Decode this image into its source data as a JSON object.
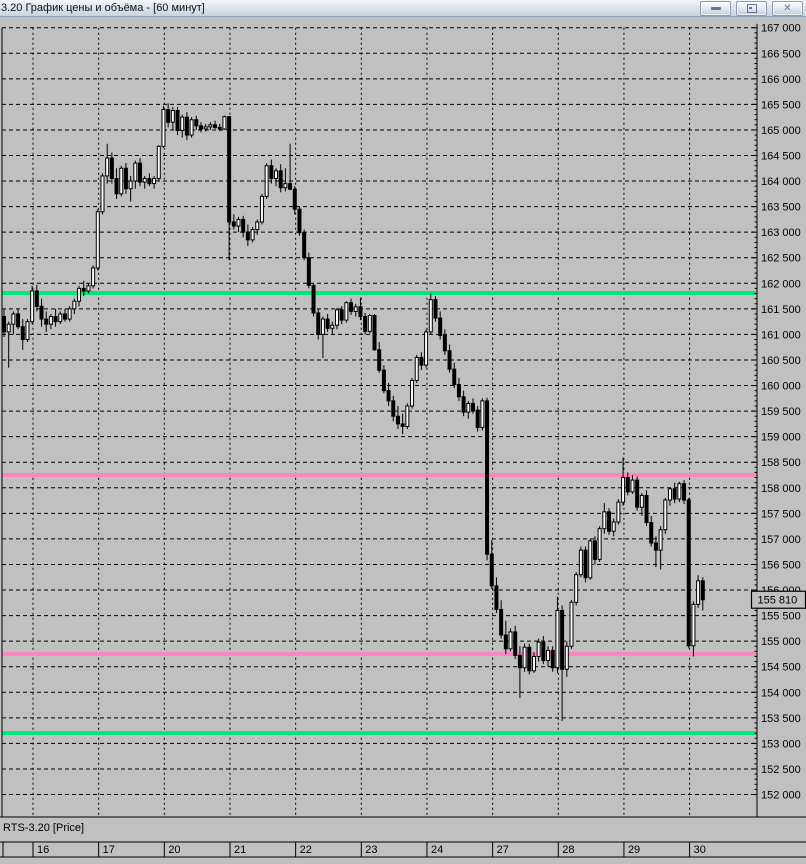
{
  "window": {
    "title": "3.20 График цены и объёма - [60 минут]",
    "buttons": [
      {
        "name": "minimize"
      },
      {
        "name": "restore"
      },
      {
        "name": "close"
      }
    ]
  },
  "footer": {
    "instrument_label": "RTS-3.20 [Price]"
  },
  "chart_data": {
    "type": "candlestick",
    "title": "График цены и объёма",
    "timeframe": "60 минут",
    "instrument": "RTS-3.20",
    "background": "#c0c0c0",
    "grid": true,
    "last_price": 155810,
    "y_axis": {
      "side": "right",
      "min": 152000,
      "max": 167000,
      "tick_step": 500,
      "minor_tick_step": 100,
      "label_format": "space_thousands"
    },
    "x_axis": {
      "day_labels": [
        "16",
        "17",
        "20",
        "21",
        "22",
        "23",
        "24",
        "27",
        "28",
        "29",
        "30"
      ],
      "candles_per_day": 14,
      "lead_in_candles": 6
    },
    "levels": [
      {
        "name": "resistance-upper",
        "color": "#00e87c",
        "price": 161810
      },
      {
        "name": "resistance-mid",
        "color": "#ff85c2",
        "price": 158250
      },
      {
        "name": "support-mid",
        "color": "#ff85c2",
        "price": 154750
      },
      {
        "name": "support-lower",
        "color": "#00e87c",
        "price": 153200
      }
    ],
    "candles": [
      [
        161350,
        161500,
        160950,
        161050
      ],
      [
        161050,
        161250,
        160350,
        161200
      ],
      [
        161200,
        161450,
        161000,
        161400
      ],
      [
        161400,
        161500,
        161100,
        161150
      ],
      [
        161150,
        161300,
        160700,
        160900
      ],
      [
        160900,
        161300,
        160850,
        161250
      ],
      [
        161250,
        161950,
        161200,
        161850
      ],
      [
        161850,
        161970,
        161450,
        161550
      ],
      [
        161550,
        161700,
        161150,
        161300
      ],
      [
        161300,
        161450,
        161050,
        161200
      ],
      [
        161200,
        161400,
        161100,
        161350
      ],
      [
        161350,
        161500,
        161150,
        161250
      ],
      [
        161250,
        161450,
        161200,
        161400
      ],
      [
        161400,
        161500,
        161250,
        161300
      ],
      [
        161300,
        161550,
        161250,
        161500
      ],
      [
        161500,
        161700,
        161400,
        161650
      ],
      [
        161650,
        161950,
        161550,
        161900
      ],
      [
        161900,
        162050,
        161750,
        161850
      ],
      [
        161850,
        162000,
        161800,
        161950
      ],
      [
        161950,
        162350,
        161900,
        162300
      ],
      [
        162300,
        163450,
        162250,
        163400
      ],
      [
        163400,
        164150,
        163350,
        164100
      ],
      [
        164100,
        164730,
        163950,
        164450
      ],
      [
        164450,
        164560,
        163950,
        164050
      ],
      [
        164050,
        164250,
        163650,
        163750
      ],
      [
        163750,
        164300,
        163700,
        164250
      ],
      [
        164250,
        164350,
        163750,
        163850
      ],
      [
        163850,
        164100,
        163600,
        164000
      ],
      [
        164000,
        164400,
        163850,
        164350
      ],
      [
        164350,
        164450,
        163900,
        163980
      ],
      [
        163980,
        164100,
        163850,
        164050
      ],
      [
        164050,
        164150,
        163900,
        163950
      ],
      [
        163950,
        164100,
        163850,
        164050
      ],
      [
        164050,
        164700,
        164000,
        164680
      ],
      [
        164680,
        165470,
        164650,
        165400
      ],
      [
        165400,
        165520,
        165050,
        165150
      ],
      [
        165150,
        165450,
        165000,
        165380
      ],
      [
        165380,
        165450,
        164900,
        164990
      ],
      [
        164990,
        165300,
        164850,
        165250
      ],
      [
        165250,
        165350,
        164800,
        164900
      ],
      [
        164900,
        165250,
        164850,
        165200
      ],
      [
        165200,
        165280,
        165000,
        165080
      ],
      [
        165080,
        165150,
        164950,
        165020
      ],
      [
        165020,
        165120,
        164970,
        165060
      ],
      [
        165060,
        165150,
        165000,
        165100
      ],
      [
        165100,
        165180,
        165020,
        165050
      ],
      [
        165050,
        165120,
        164980,
        165020
      ],
      [
        165020,
        165280,
        165000,
        165260
      ],
      [
        165260,
        165270,
        162450,
        163200
      ],
      [
        163200,
        163350,
        163050,
        163120
      ],
      [
        163120,
        163300,
        163000,
        163250
      ],
      [
        163250,
        163320,
        162900,
        163000
      ],
      [
        163000,
        163150,
        162730,
        162850
      ],
      [
        162850,
        163100,
        162800,
        163050
      ],
      [
        163050,
        163250,
        162950,
        163200
      ],
      [
        163200,
        163750,
        163150,
        163700
      ],
      [
        163700,
        164350,
        163650,
        164300
      ],
      [
        164300,
        164420,
        163950,
        164050
      ],
      [
        164050,
        164250,
        163900,
        164200
      ],
      [
        164200,
        164330,
        163780,
        163870
      ],
      [
        163870,
        164250,
        163800,
        163950
      ],
      [
        163950,
        164730,
        163820,
        163840
      ],
      [
        163840,
        163900,
        163350,
        163450
      ],
      [
        163450,
        163500,
        162930,
        162990
      ],
      [
        162990,
        163050,
        162450,
        162500
      ],
      [
        162500,
        162600,
        161900,
        161960
      ],
      [
        161960,
        162000,
        161350,
        161420
      ],
      [
        161420,
        161500,
        160900,
        161000
      ],
      [
        161000,
        161350,
        160540,
        161300
      ],
      [
        161300,
        161400,
        161050,
        161120
      ],
      [
        161120,
        161250,
        161000,
        161180
      ],
      [
        161180,
        161520,
        161100,
        161480
      ],
      [
        161480,
        161550,
        161200,
        161280
      ],
      [
        161280,
        161650,
        161230,
        161620
      ],
      [
        161620,
        161700,
        161380,
        161450
      ],
      [
        161450,
        161600,
        161350,
        161540
      ],
      [
        161540,
        161720,
        161280,
        161350
      ],
      [
        161350,
        161420,
        161000,
        161060
      ],
      [
        161060,
        161400,
        161020,
        161370
      ],
      [
        161370,
        161400,
        160680,
        160700
      ],
      [
        160700,
        160850,
        160250,
        160300
      ],
      [
        160300,
        160400,
        159850,
        159900
      ],
      [
        159900,
        160050,
        159600,
        159700
      ],
      [
        159700,
        159800,
        159300,
        159400
      ],
      [
        159400,
        159600,
        159150,
        159250
      ],
      [
        159250,
        159450,
        159050,
        159200
      ],
      [
        159200,
        159650,
        159150,
        159600
      ],
      [
        159600,
        160150,
        159550,
        160100
      ],
      [
        160100,
        160600,
        160050,
        160550
      ],
      [
        160550,
        160650,
        160300,
        160400
      ],
      [
        160400,
        161100,
        160350,
        161050
      ],
      [
        161050,
        161800,
        161000,
        161680
      ],
      [
        161680,
        161750,
        161250,
        161320
      ],
      [
        161320,
        161450,
        160900,
        160980
      ],
      [
        160980,
        161100,
        160600,
        160680
      ],
      [
        160680,
        160800,
        160250,
        160320
      ],
      [
        160320,
        160450,
        159950,
        160020
      ],
      [
        160020,
        160150,
        159700,
        159780
      ],
      [
        159780,
        159900,
        159400,
        159480
      ],
      [
        159480,
        159700,
        159350,
        159650
      ],
      [
        159650,
        159750,
        159450,
        159520
      ],
      [
        159520,
        159600,
        159100,
        159180
      ],
      [
        159180,
        159750,
        159120,
        159700
      ],
      [
        159700,
        159760,
        156580,
        156700
      ],
      [
        156700,
        156980,
        156020,
        156080
      ],
      [
        156080,
        156250,
        155550,
        155620
      ],
      [
        155620,
        155800,
        155050,
        155120
      ],
      [
        155120,
        155400,
        154750,
        154850
      ],
      [
        154850,
        155250,
        154800,
        155180
      ],
      [
        155180,
        155300,
        154650,
        154720
      ],
      [
        154720,
        154900,
        153890,
        154480
      ],
      [
        154480,
        154950,
        154400,
        154880
      ],
      [
        154880,
        154950,
        154350,
        154420
      ],
      [
        154420,
        154780,
        154380,
        154700
      ],
      [
        154700,
        155050,
        154600,
        154980
      ],
      [
        154980,
        155100,
        154550,
        154620
      ],
      [
        154620,
        154900,
        154500,
        154820
      ],
      [
        154820,
        154900,
        154400,
        154480
      ],
      [
        154480,
        155870,
        154380,
        155600
      ],
      [
        155600,
        155700,
        153440,
        154450
      ],
      [
        154450,
        155000,
        154300,
        154900
      ],
      [
        154900,
        155800,
        154850,
        155760
      ],
      [
        155760,
        156350,
        155700,
        156300
      ],
      [
        156300,
        156850,
        156250,
        156780
      ],
      [
        156780,
        156850,
        156150,
        156240
      ],
      [
        156240,
        157000,
        156200,
        156960
      ],
      [
        156960,
        157050,
        156500,
        156600
      ],
      [
        156600,
        157250,
        156550,
        157200
      ],
      [
        157200,
        157700,
        157100,
        157530
      ],
      [
        157530,
        157600,
        157080,
        157150
      ],
      [
        157150,
        157400,
        157050,
        157330
      ],
      [
        157330,
        157780,
        157280,
        157720
      ],
      [
        157720,
        158590,
        157650,
        158200
      ],
      [
        158200,
        158300,
        157850,
        157920
      ],
      [
        157920,
        158250,
        157880,
        158150
      ],
      [
        158150,
        158220,
        157550,
        157620
      ],
      [
        157620,
        157900,
        157450,
        157850
      ],
      [
        157850,
        157950,
        157250,
        157320
      ],
      [
        157320,
        157450,
        156850,
        156920
      ],
      [
        156920,
        157050,
        156450,
        156780
      ],
      [
        156780,
        157250,
        156400,
        157180
      ],
      [
        157180,
        157800,
        157100,
        157760
      ],
      [
        157760,
        158000,
        157650,
        157980
      ],
      [
        157980,
        158100,
        157700,
        157780
      ],
      [
        157780,
        158120,
        157720,
        158080
      ],
      [
        158080,
        158150,
        157680,
        157760
      ],
      [
        157760,
        157800,
        154860,
        154910
      ],
      [
        154910,
        155780,
        154700,
        155720
      ],
      [
        155720,
        156290,
        155650,
        156180
      ],
      [
        156180,
        156250,
        155600,
        155810
      ]
    ]
  }
}
